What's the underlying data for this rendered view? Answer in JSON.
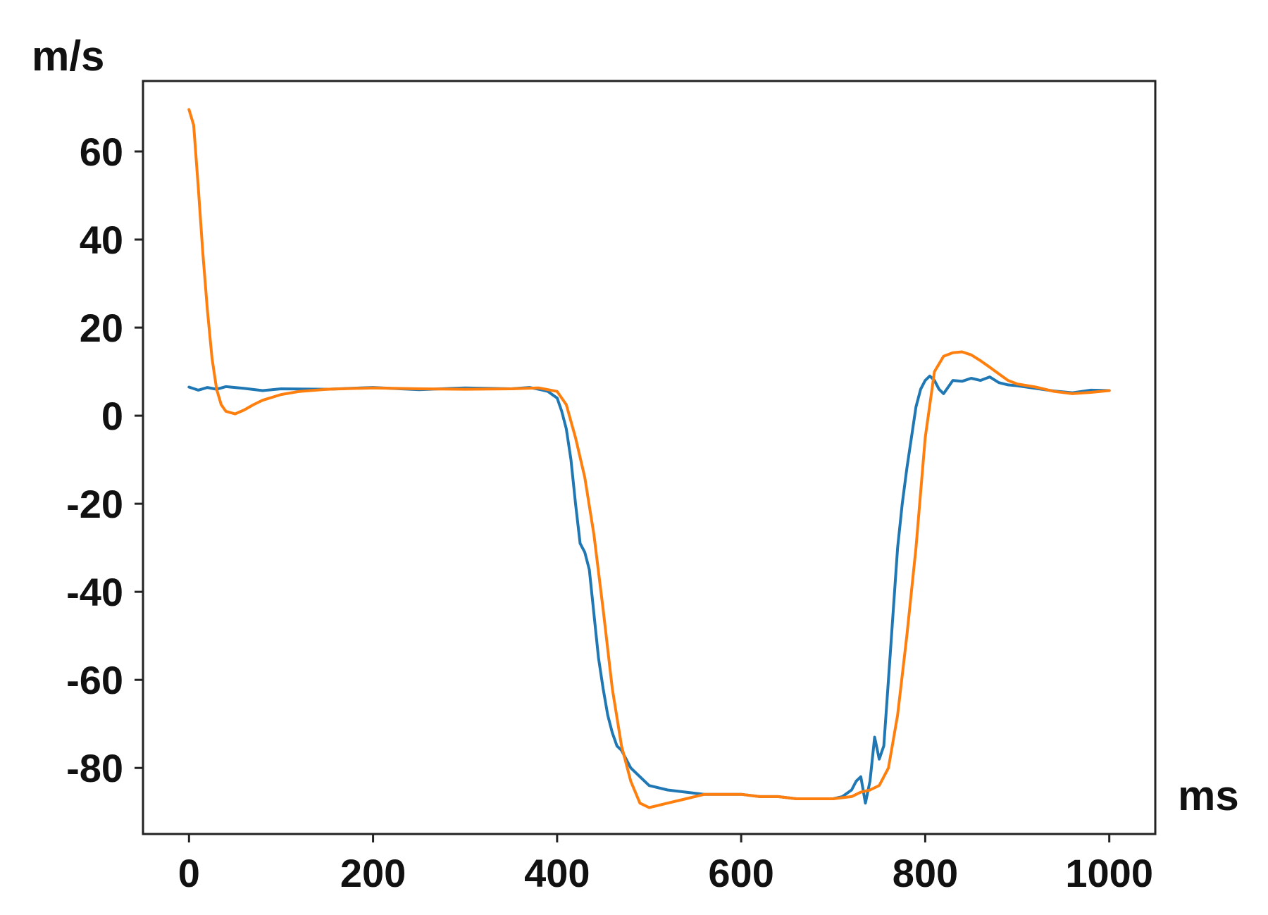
{
  "chart_data": {
    "type": "line",
    "title": "",
    "xlabel": "ms",
    "ylabel": "m/s",
    "xlim": [
      -50,
      1050
    ],
    "ylim": [
      -95,
      76
    ],
    "grid": false,
    "x_ticks": [
      0,
      200,
      400,
      600,
      800,
      1000
    ],
    "y_ticks": [
      -80,
      -60,
      -40,
      -20,
      0,
      20,
      40,
      60
    ],
    "colors": {
      "series_1": "#1f77b4",
      "series_2": "#ff7f0e",
      "axis": "#222222"
    },
    "series": [
      {
        "color": "#1f77b4",
        "x": [
          0,
          10,
          20,
          30,
          40,
          60,
          80,
          100,
          150,
          200,
          250,
          300,
          350,
          370,
          380,
          390,
          400,
          405,
          410,
          415,
          420,
          425,
          430,
          435,
          440,
          445,
          450,
          455,
          460,
          465,
          470,
          480,
          490,
          500,
          520,
          540,
          560,
          580,
          600,
          620,
          640,
          660,
          680,
          700,
          710,
          720,
          725,
          730,
          735,
          740,
          745,
          750,
          755,
          760,
          765,
          770,
          775,
          780,
          785,
          790,
          795,
          800,
          805,
          810,
          815,
          820,
          830,
          840,
          850,
          860,
          870,
          880,
          890,
          900,
          920,
          940,
          960,
          980,
          1000
        ],
        "y": [
          6.5,
          5.8,
          6.4,
          6.0,
          6.6,
          6.2,
          5.7,
          6.1,
          6.0,
          6.4,
          5.9,
          6.3,
          6.1,
          6.4,
          6.0,
          5.5,
          4.0,
          1.0,
          -3.0,
          -10.0,
          -20.0,
          -29.0,
          -31.0,
          -35.0,
          -45.0,
          -55.0,
          -62.0,
          -68.0,
          -72.0,
          -75.0,
          -76.0,
          -80.0,
          -82.0,
          -84.0,
          -85.0,
          -85.5,
          -86.0,
          -86.0,
          -86.0,
          -86.5,
          -86.5,
          -87.0,
          -87.0,
          -87.0,
          -86.5,
          -85.0,
          -83.0,
          -82.0,
          -88.0,
          -83.0,
          -73.0,
          -78.0,
          -75.0,
          -60.0,
          -45.0,
          -30.0,
          -20.0,
          -12.0,
          -5.0,
          2.0,
          6.0,
          8.0,
          9.0,
          8.0,
          6.0,
          5.0,
          8.0,
          7.8,
          8.5,
          8.0,
          8.8,
          7.5,
          7.0,
          6.8,
          6.2,
          5.6,
          5.2,
          5.8,
          5.7
        ]
      },
      {
        "color": "#ff7f0e",
        "x": [
          0,
          5,
          10,
          15,
          20,
          25,
          30,
          35,
          40,
          50,
          60,
          70,
          80,
          100,
          120,
          150,
          200,
          250,
          300,
          350,
          380,
          400,
          410,
          420,
          430,
          440,
          450,
          460,
          470,
          480,
          490,
          500,
          520,
          540,
          560,
          580,
          600,
          620,
          640,
          660,
          680,
          700,
          720,
          730,
          740,
          750,
          760,
          770,
          780,
          790,
          800,
          810,
          820,
          830,
          840,
          850,
          860,
          870,
          880,
          890,
          900,
          920,
          940,
          960,
          980,
          1000
        ],
        "y": [
          69.5,
          66.0,
          52.0,
          37.0,
          24.0,
          13.0,
          6.0,
          2.5,
          1.0,
          0.4,
          1.3,
          2.5,
          3.5,
          4.8,
          5.5,
          6.0,
          6.3,
          6.1,
          6.0,
          6.1,
          6.3,
          5.5,
          2.5,
          -5.0,
          -14.0,
          -27.0,
          -44.0,
          -62.0,
          -75.0,
          -83.0,
          -88.0,
          -89.0,
          -88.0,
          -87.0,
          -86.0,
          -86.0,
          -86.0,
          -86.5,
          -86.5,
          -87.0,
          -87.0,
          -87.0,
          -86.5,
          -85.5,
          -85.0,
          -84.0,
          -80.0,
          -68.0,
          -50.0,
          -30.0,
          -5.0,
          10.0,
          13.5,
          14.3,
          14.5,
          13.8,
          12.5,
          11.0,
          9.5,
          8.0,
          7.2,
          6.5,
          5.5,
          5.0,
          5.3,
          5.7
        ]
      }
    ]
  }
}
